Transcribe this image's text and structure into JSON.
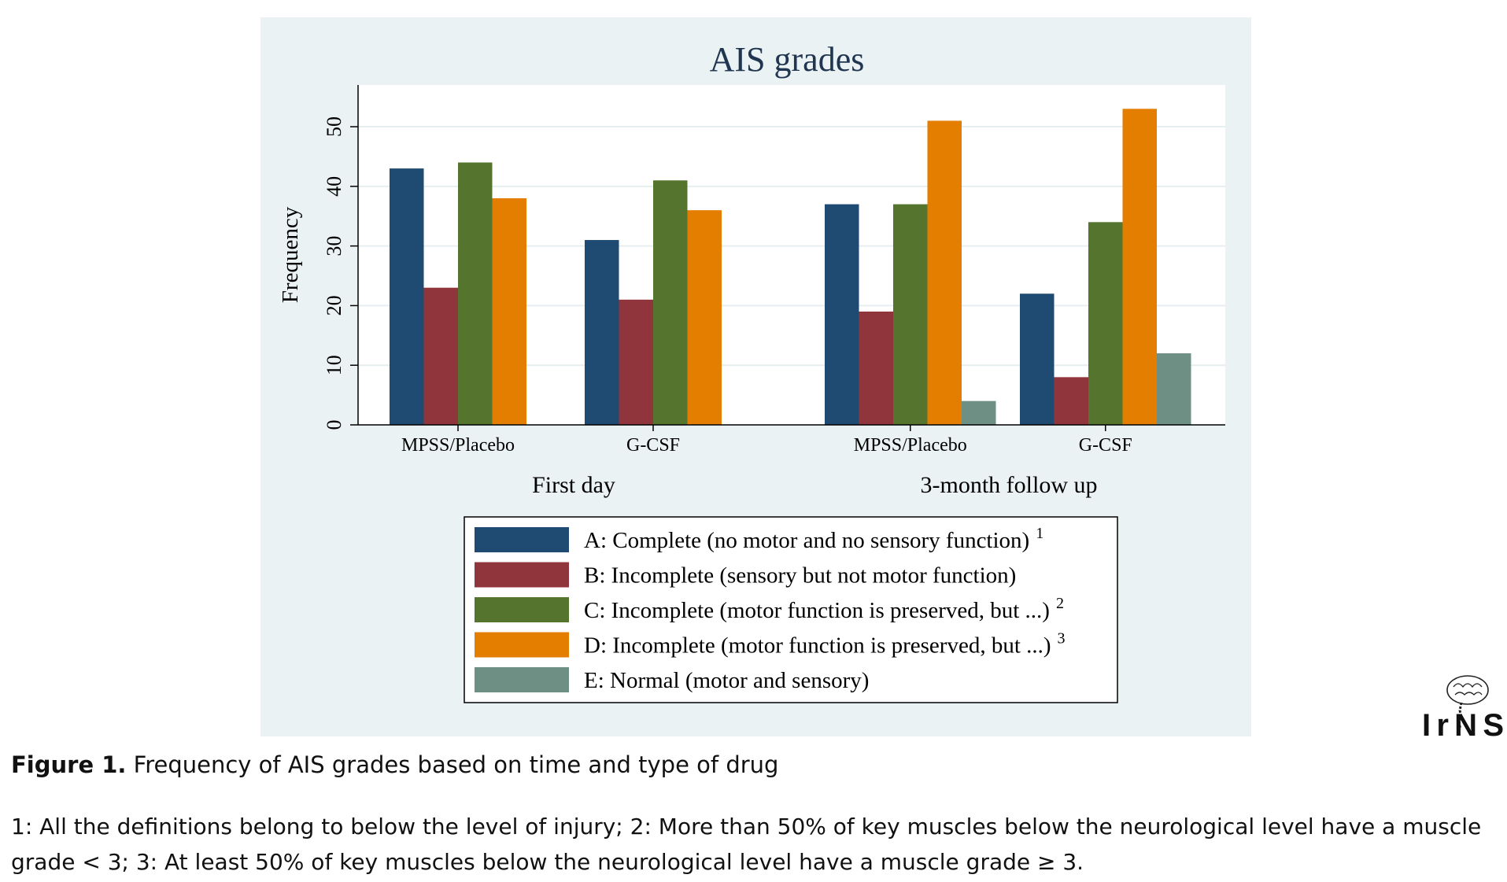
{
  "chart_data": {
    "type": "bar",
    "title": "AIS grades",
    "ylabel": "Frequency",
    "xlabel": "",
    "ylim": [
      0,
      57
    ],
    "yticks": [
      0,
      10,
      20,
      30,
      40,
      50
    ],
    "grid": true,
    "legend_position": "bottom",
    "groups": [
      {
        "label": "First day",
        "categories": [
          "MPSS/Placebo",
          "G-CSF"
        ]
      },
      {
        "label": "3-month follow up",
        "categories": [
          "MPSS/Placebo",
          "G-CSF"
        ]
      }
    ],
    "series": [
      {
        "name": "A: Complete (no motor and no sensory function)",
        "sup": "1",
        "color": "#1f4a72",
        "values": [
          43,
          31,
          37,
          22
        ]
      },
      {
        "name": "B: Incomplete (sensory but not motor function)",
        "sup": "",
        "color": "#90353b",
        "values": [
          23,
          21,
          19,
          8
        ]
      },
      {
        "name": "C: Incomplete (motor function is preserved, but ...)",
        "sup": "2",
        "color": "#55752f",
        "values": [
          44,
          41,
          37,
          34
        ]
      },
      {
        "name": "D: Incomplete (motor function is preserved, but ...)",
        "sup": "3",
        "color": "#e37e00",
        "values": [
          38,
          36,
          51,
          53
        ]
      },
      {
        "name": "E: Normal (motor and sensory)",
        "sup": "",
        "color": "#6e8f83",
        "values": [
          0,
          0,
          4,
          12
        ]
      }
    ]
  },
  "caption": {
    "label": "Figure 1.",
    "text": " Frequency of AIS grades based on time and type of drug"
  },
  "footnote": "1: All the definitions belong to below the level of injury; 2: More than 50% of key muscles below the neurological level have a muscle grade < 3; 3: At least 50% of key muscles below the neurological level have a muscle grade ≥ 3.",
  "logo_text": "IrNS",
  "colors": {
    "panel_bg": "#eaf2f3",
    "plot_bg": "#ffffff",
    "grid": "#e6eef0",
    "title": "#1f3550"
  }
}
